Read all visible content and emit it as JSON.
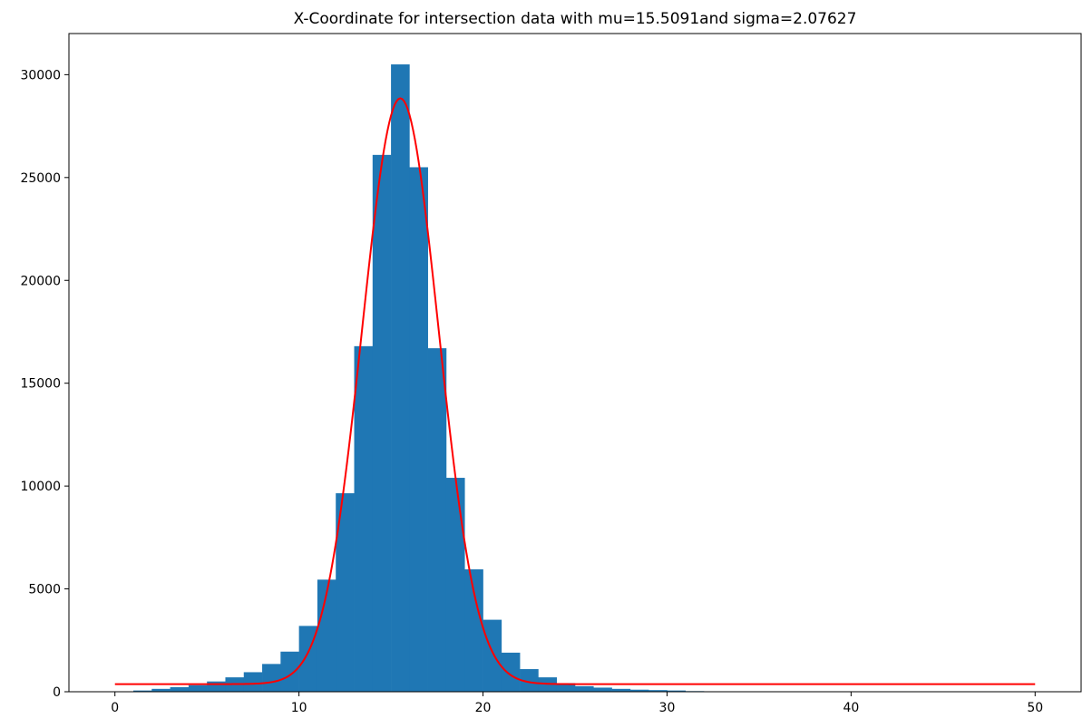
{
  "chart_data": {
    "type": "bar",
    "title": "X-Coordinate for intersection data with mu=15.5091and sigma=2.07627",
    "xlabel": "",
    "ylabel": "",
    "xlim": [
      -2.5,
      52.5
    ],
    "ylim": [
      0,
      32000
    ],
    "x_ticks": [
      0,
      10,
      20,
      30,
      40,
      50
    ],
    "y_ticks": [
      0,
      5000,
      10000,
      15000,
      20000,
      25000,
      30000
    ],
    "grid": false,
    "histogram": {
      "bin_edges": [
        0,
        1,
        2,
        3,
        4,
        5,
        6,
        7,
        8,
        9,
        10,
        11,
        12,
        13,
        14,
        15,
        16,
        17,
        18,
        19,
        20,
        21,
        22,
        23,
        24,
        25,
        26,
        27,
        28,
        29,
        30,
        31,
        32,
        33,
        34,
        35,
        36,
        37,
        38,
        39,
        40,
        41,
        42,
        43,
        44,
        45,
        46,
        47,
        48,
        49,
        50
      ],
      "counts": [
        10,
        60,
        140,
        220,
        320,
        500,
        700,
        950,
        1350,
        1950,
        3200,
        5450,
        9650,
        16800,
        26100,
        30500,
        25500,
        16700,
        10400,
        5950,
        3500,
        1900,
        1100,
        700,
        420,
        270,
        200,
        140,
        100,
        80,
        60,
        30,
        20,
        15,
        10,
        8,
        5,
        5,
        5,
        5,
        5,
        5,
        5,
        5,
        5,
        5,
        5,
        5,
        5,
        5
      ],
      "color": "#1f77b4"
    },
    "fit_curve": {
      "mu": 15.5091,
      "sigma": 2.07627,
      "peak": 28850,
      "baseline": 370,
      "x_range": [
        0,
        50
      ],
      "color": "#ff0000"
    }
  }
}
